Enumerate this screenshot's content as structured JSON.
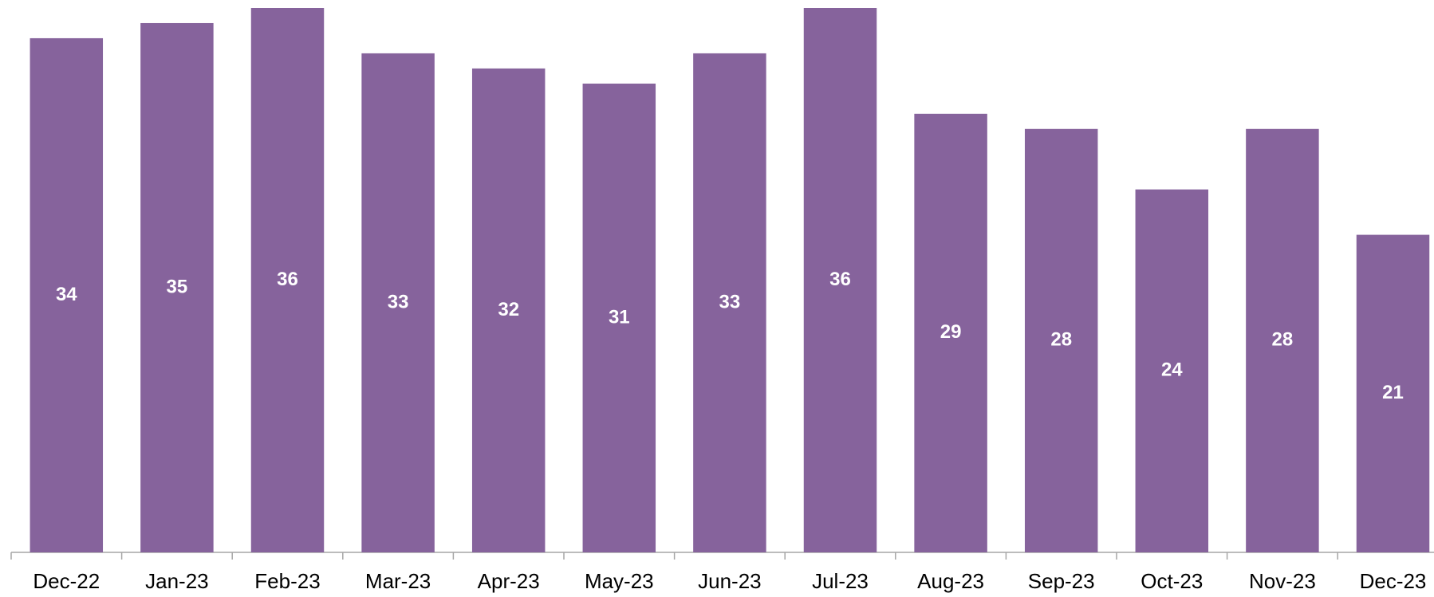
{
  "chart_data": {
    "type": "bar",
    "categories": [
      "Dec-22",
      "Jan-23",
      "Feb-23",
      "Mar-23",
      "Apr-23",
      "May-23",
      "Jun-23",
      "Jul-23",
      "Aug-23",
      "Sep-23",
      "Oct-23",
      "Nov-23",
      "Dec-23"
    ],
    "values": [
      34,
      35,
      36,
      33,
      32,
      31,
      33,
      36,
      29,
      28,
      24,
      28,
      21
    ],
    "color": "#86639c"
  }
}
